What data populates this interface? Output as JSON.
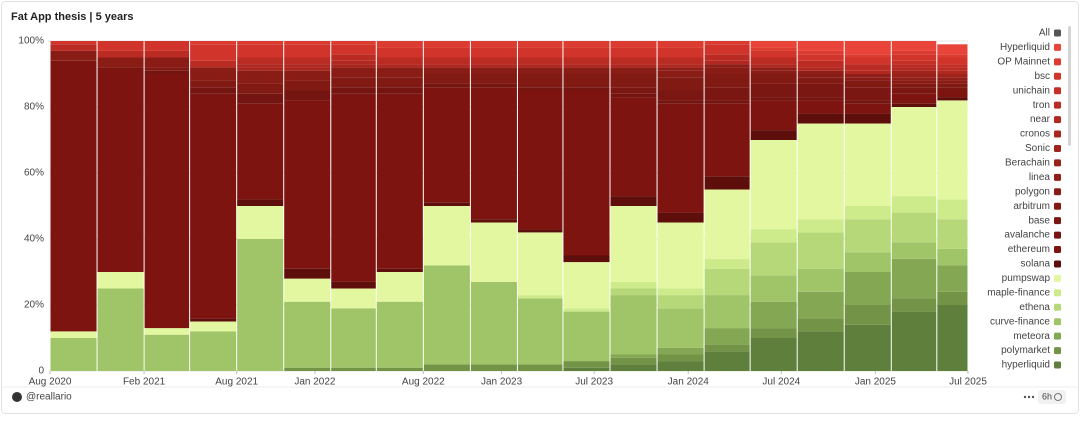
{
  "chart_data": {
    "type": "stacked_bar_100",
    "title": "Fat App thesis | 5 years",
    "legend_toggle": "All",
    "legend_toggle_color": "#555555",
    "x": [
      "Aug 2020",
      "Nov 2020",
      "Feb 2021",
      "May 2021",
      "Aug 2021",
      "Nov 2021",
      "Feb 2022",
      "May 2022",
      "Aug 2022",
      "Nov 2022",
      "Feb 2023",
      "May 2023",
      "Aug 2023",
      "Nov 2023",
      "Feb 2024",
      "May 2024",
      "Aug 2024",
      "Nov 2024",
      "Feb 2025",
      "May 2025"
    ],
    "xlim": [
      "Aug 2020",
      "Jul 2025"
    ],
    "xticks": [
      "Aug 2020",
      "Feb 2021",
      "Aug 2021",
      "Jan 2022",
      "Aug 2022",
      "Jan 2023",
      "Jul 2023",
      "Jan 2024",
      "Jul 2024",
      "Jan 2025",
      "Jul 2025"
    ],
    "ylim": [
      0,
      100
    ],
    "yticks": [
      0,
      {
        "value": 20,
        "label": "20%"
      },
      {
        "value": 40,
        "label": "40%"
      },
      {
        "value": 60,
        "label": "60%"
      },
      {
        "value": 80,
        "label": "80%"
      },
      {
        "value": 100,
        "label": "100%"
      }
    ],
    "grid": true,
    "series": [
      {
        "name": "Hyperliquid",
        "color": "#e8443a",
        "values": [
          0,
          0,
          0,
          0,
          0,
          0,
          0,
          0,
          0,
          0,
          0,
          0,
          0,
          0,
          0,
          2,
          3,
          4,
          3,
          3
        ]
      },
      {
        "name": "OP Mainnet",
        "color": "#dc3b30",
        "values": [
          0,
          0,
          0,
          1,
          1,
          1,
          1,
          2,
          2,
          2,
          2,
          2,
          2,
          2,
          1,
          1,
          1,
          1,
          1,
          1
        ]
      },
      {
        "name": "bsc",
        "color": "#d0342a",
        "values": [
          1,
          3,
          3,
          5,
          4,
          4,
          3,
          3,
          3,
          3,
          3,
          3,
          3,
          3,
          3,
          2,
          2,
          2,
          2,
          2
        ]
      },
      {
        "name": "unichain",
        "color": "#c42f26",
        "values": [
          0,
          0,
          0,
          0,
          0,
          0,
          0,
          0,
          0,
          0,
          0,
          0,
          0,
          0,
          0,
          0,
          0,
          0,
          1,
          1
        ]
      },
      {
        "name": "tron",
        "color": "#ba2b23",
        "values": [
          2,
          2,
          2,
          2,
          2,
          2,
          2,
          2,
          2,
          2,
          2,
          2,
          2,
          2,
          2,
          2,
          2,
          2,
          1,
          1
        ]
      },
      {
        "name": "near",
        "color": "#b02820",
        "values": [
          0,
          0,
          0,
          0,
          1,
          1,
          1,
          1,
          1,
          1,
          1,
          1,
          1,
          1,
          1,
          1,
          1,
          1,
          1,
          1
        ]
      },
      {
        "name": "cronos",
        "color": "#a8251d",
        "values": [
          0,
          0,
          0,
          0,
          1,
          1,
          1,
          0,
          0,
          0,
          0,
          0,
          0,
          0,
          0,
          0,
          0,
          0,
          0,
          0
        ]
      },
      {
        "name": "Sonic",
        "color": "#a0231b",
        "values": [
          0,
          0,
          0,
          0,
          0,
          0,
          0,
          0,
          0,
          0,
          0,
          0,
          0,
          0,
          0,
          0,
          0,
          0,
          1,
          1
        ]
      },
      {
        "name": "Berachain",
        "color": "#98211a",
        "values": [
          0,
          0,
          0,
          0,
          0,
          0,
          0,
          0,
          0,
          0,
          0,
          0,
          0,
          0,
          0,
          0,
          0,
          0,
          1,
          0
        ]
      },
      {
        "name": "linea",
        "color": "#901e18",
        "values": [
          0,
          0,
          0,
          0,
          0,
          0,
          0,
          0,
          0,
          0,
          0,
          0,
          0,
          1,
          1,
          1,
          1,
          1,
          1,
          1
        ]
      },
      {
        "name": "polygon",
        "color": "#8a1c16",
        "values": [
          3,
          3,
          3,
          4,
          4,
          3,
          3,
          3,
          2,
          2,
          2,
          2,
          2,
          2,
          2,
          1,
          1,
          1,
          1,
          1
        ]
      },
      {
        "name": "arbitrum",
        "color": "#821a14",
        "values": [
          0,
          0,
          1,
          2,
          3,
          3,
          3,
          3,
          3,
          3,
          4,
          4,
          4,
          4,
          4,
          3,
          2,
          2,
          1,
          1
        ]
      },
      {
        "name": "base",
        "color": "#7a1712",
        "values": [
          0,
          0,
          0,
          0,
          0,
          0,
          0,
          0,
          0,
          0,
          0,
          0,
          2,
          3,
          4,
          4,
          4,
          4,
          2,
          1
        ]
      },
      {
        "name": "avalanche",
        "color": "#741511",
        "values": [
          0,
          0,
          1,
          2,
          3,
          3,
          2,
          2,
          1,
          1,
          1,
          1,
          1,
          1,
          1,
          1,
          1,
          1,
          0,
          0
        ]
      },
      {
        "name": "ethereum",
        "color": "#7d1410",
        "values": [
          82,
          62,
          77,
          68,
          29,
          51,
          57,
          53,
          35,
          40,
          42,
          50,
          30,
          33,
          22,
          9,
          4,
          3,
          3,
          2
        ]
      },
      {
        "name": "solana",
        "color": "#5e0e0b",
        "values": [
          0,
          0,
          0,
          1,
          2,
          3,
          2,
          1,
          1,
          1,
          1,
          2,
          3,
          3,
          4,
          3,
          3,
          3,
          1,
          1
        ]
      },
      {
        "name": "pumpswap",
        "color": "#e2f7a0",
        "values": [
          2,
          5,
          2,
          3,
          10,
          7,
          6,
          9,
          18,
          18,
          19,
          14,
          23,
          20,
          21,
          27,
          29,
          25,
          27,
          30
        ]
      },
      {
        "name": "maple-finance",
        "color": "#cdeb8b",
        "values": [
          0,
          0,
          0,
          0,
          0,
          0,
          0,
          0,
          0,
          0,
          1,
          1,
          2,
          2,
          3,
          4,
          4,
          4,
          5,
          6
        ]
      },
      {
        "name": "ethena",
        "color": "#b6d878",
        "values": [
          0,
          0,
          0,
          0,
          0,
          0,
          0,
          0,
          0,
          0,
          0,
          0,
          2,
          4,
          8,
          10,
          11,
          10,
          9,
          9
        ]
      },
      {
        "name": "curve-finance",
        "color": "#a0c468",
        "values": [
          10,
          25,
          11,
          12,
          40,
          20,
          18,
          20,
          30,
          25,
          20,
          15,
          18,
          12,
          10,
          8,
          7,
          6,
          5,
          5
        ]
      },
      {
        "name": "meteora",
        "color": "#84a753",
        "values": [
          0,
          0,
          0,
          0,
          0,
          0,
          0,
          0,
          0,
          0,
          0,
          0,
          1,
          2,
          5,
          8,
          8,
          10,
          12,
          8
        ]
      },
      {
        "name": "polymarket",
        "color": "#739447",
        "values": [
          0,
          0,
          0,
          0,
          0,
          1,
          1,
          1,
          2,
          2,
          2,
          2,
          2,
          2,
          2,
          3,
          4,
          6,
          4,
          4
        ]
      },
      {
        "name": "hyperliquid",
        "color": "#5f7f3d",
        "values": [
          0,
          0,
          0,
          0,
          0,
          0,
          0,
          0,
          0,
          0,
          0,
          1,
          2,
          3,
          6,
          10,
          12,
          14,
          18,
          20
        ]
      }
    ]
  },
  "footer": {
    "author": "@reallario",
    "age": "6h"
  }
}
